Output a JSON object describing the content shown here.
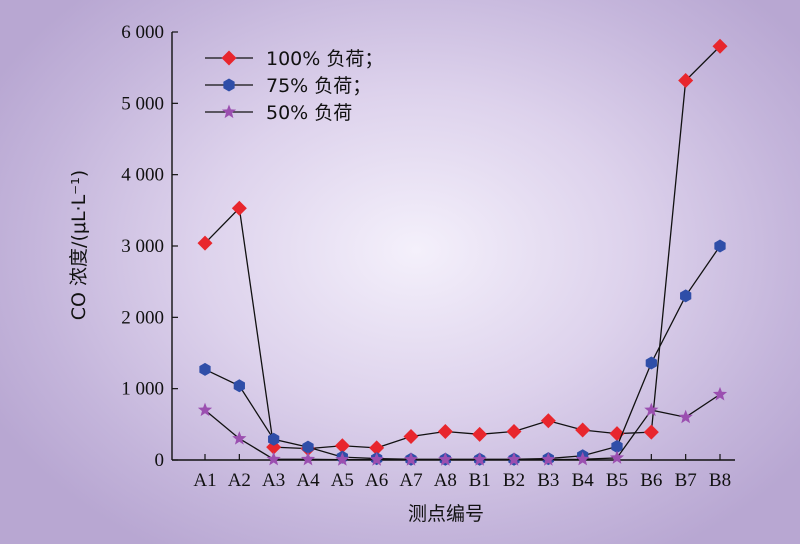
{
  "chart_data": {
    "type": "line",
    "xlabel": "测点编号",
    "ylabel": "CO 浓度/(μL·L⁻¹)",
    "categories": [
      "A1",
      "A2",
      "A3",
      "A4",
      "A5",
      "A6",
      "A7",
      "A8",
      "B1",
      "B2",
      "B3",
      "B4",
      "B5",
      "B6",
      "B7",
      "B8"
    ],
    "ylim": [
      0,
      6000
    ],
    "yticks": [
      0,
      1000,
      2000,
      3000,
      4000,
      5000,
      6000
    ],
    "ytick_labels": [
      "0",
      "1 000",
      "2 000",
      "3 000",
      "4 000",
      "5 000",
      "6 000"
    ],
    "legend_position": "top-left",
    "grid": false,
    "series": [
      {
        "name": "100% 负荷；",
        "marker": "diamond",
        "color": "#e8262d",
        "values": [
          3040,
          3530,
          180,
          160,
          200,
          170,
          330,
          400,
          360,
          400,
          550,
          420,
          370,
          390,
          5320,
          5800
        ]
      },
      {
        "name": "75% 负荷；",
        "marker": "hexagon",
        "color": "#2f4ea8",
        "values": [
          1270,
          1040,
          290,
          180,
          40,
          20,
          10,
          10,
          10,
          10,
          20,
          60,
          190,
          1360,
          2300,
          3000
        ]
      },
      {
        "name": "50% 负荷",
        "marker": "star",
        "color": "#9b4fb0",
        "values": [
          700,
          300,
          10,
          10,
          5,
          5,
          5,
          5,
          5,
          5,
          5,
          10,
          30,
          700,
          600,
          920
        ]
      }
    ]
  }
}
